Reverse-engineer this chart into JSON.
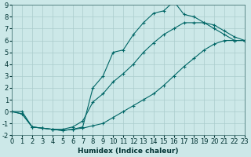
{
  "xlabel": "Humidex (Indice chaleur)",
  "bg_color": "#cce8e8",
  "grid_color": "#aacccc",
  "line_color": "#006666",
  "xlim": [
    0,
    23
  ],
  "ylim": [
    -2,
    9
  ],
  "xticks": [
    0,
    1,
    2,
    3,
    4,
    5,
    6,
    7,
    8,
    9,
    10,
    11,
    12,
    13,
    14,
    15,
    16,
    17,
    18,
    19,
    20,
    21,
    22,
    23
  ],
  "yticks": [
    -2,
    -1,
    0,
    1,
    2,
    3,
    4,
    5,
    6,
    7,
    8,
    9
  ],
  "line1_x": [
    0,
    1,
    2,
    3,
    4,
    5,
    6,
    7,
    8,
    9,
    10,
    11,
    12,
    13,
    14,
    15,
    16,
    17,
    18,
    19,
    20,
    21,
    22,
    23
  ],
  "line1_y": [
    0.0,
    -0.2,
    -1.3,
    -1.4,
    -1.5,
    -1.6,
    -1.5,
    -1.4,
    -1.2,
    -1.0,
    -0.5,
    0.0,
    0.5,
    1.0,
    1.5,
    2.2,
    3.0,
    3.8,
    4.5,
    5.2,
    5.7,
    6.0,
    6.0,
    6.0
  ],
  "line2_x": [
    0,
    1,
    2,
    3,
    4,
    5,
    6,
    7,
    8,
    9,
    10,
    11,
    12,
    13,
    14,
    15,
    16,
    17,
    18,
    19,
    20,
    21,
    22,
    23
  ],
  "line2_y": [
    0.0,
    0.0,
    -1.3,
    -1.4,
    -1.5,
    -1.6,
    -1.5,
    -1.3,
    2.0,
    3.0,
    5.0,
    5.2,
    6.5,
    7.5,
    8.3,
    8.5,
    9.3,
    8.2,
    8.0,
    7.5,
    7.0,
    6.5,
    6.0,
    6.0
  ],
  "line3_x": [
    0,
    1,
    2,
    3,
    4,
    5,
    6,
    7,
    8,
    9,
    10,
    11,
    12,
    13,
    14,
    15,
    16,
    17,
    18,
    19,
    20,
    21,
    22,
    23
  ],
  "line3_y": [
    0.0,
    -0.2,
    -1.3,
    -1.4,
    -1.5,
    -1.5,
    -1.3,
    -0.8,
    0.8,
    1.5,
    2.5,
    3.2,
    4.0,
    5.0,
    5.8,
    6.5,
    7.0,
    7.5,
    7.5,
    7.5,
    7.3,
    6.8,
    6.3,
    6.0
  ]
}
